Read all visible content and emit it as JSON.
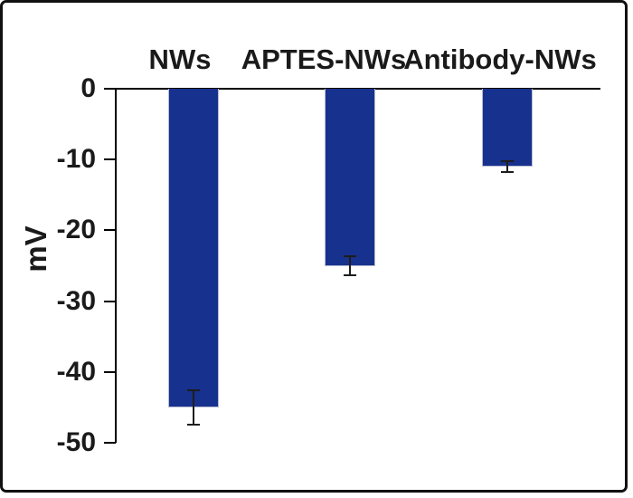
{
  "figure": {
    "background": "#ffffff",
    "frame_color": "#111111"
  },
  "chart_data": {
    "type": "bar",
    "title": "",
    "xlabel": "",
    "ylabel": "mV",
    "categories": [
      "NWs",
      "APTES-NWs",
      "Antibody-NWs"
    ],
    "values": [
      -45,
      -25,
      -11
    ],
    "errors": [
      2.4,
      1.4,
      0.8
    ],
    "bar_color": "#17318e",
    "error_bar_color": "#1d1d1d",
    "ylim": [
      -50,
      0
    ],
    "yticks": [
      0,
      -10,
      -20,
      -30,
      -40,
      -50
    ],
    "ytick_labels": [
      "0",
      "-10",
      "-20",
      "-30",
      "-40",
      "-50"
    ],
    "grid": false,
    "legend_position": "none",
    "category_label_position": "above-plot"
  }
}
